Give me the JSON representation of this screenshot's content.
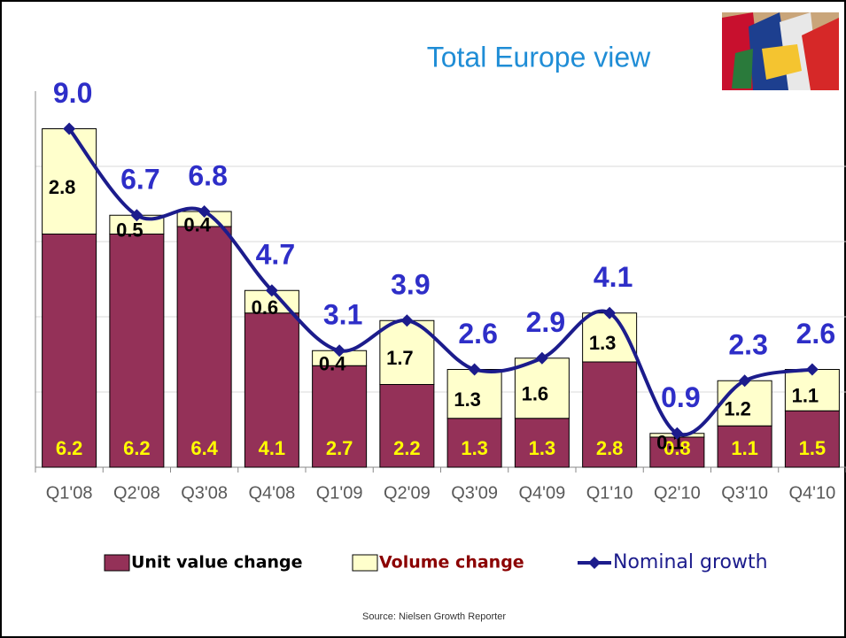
{
  "chart_data": {
    "type": "bar_line",
    "title": "Total Europe view",
    "source": "Source: Nielsen Growth Reporter",
    "categories": [
      "Q1'08",
      "Q2'08",
      "Q3'08",
      "Q4'08",
      "Q1'09",
      "Q2'09",
      "Q3'09",
      "Q4'09",
      "Q1'10",
      "Q2'10",
      "Q3'10",
      "Q4'10"
    ],
    "series": [
      {
        "name": "Unit value change",
        "color": "#943158",
        "type": "bar",
        "values": [
          6.2,
          6.2,
          6.4,
          4.1,
          2.7,
          2.2,
          1.3,
          1.3,
          2.8,
          0.8,
          1.1,
          1.5
        ]
      },
      {
        "name": "Volume change",
        "color": "#ffffcc",
        "type": "bar",
        "values": [
          2.8,
          0.5,
          0.4,
          0.6,
          0.4,
          1.7,
          1.3,
          1.6,
          1.3,
          0.1,
          1.2,
          1.1
        ]
      },
      {
        "name": "Nominal growth",
        "color": "#1c1c8c",
        "type": "line",
        "values": [
          9.0,
          6.7,
          6.8,
          4.7,
          3.1,
          3.9,
          2.6,
          2.9,
          4.1,
          0.9,
          2.3,
          2.6
        ],
        "value_labels": [
          "9.0",
          "6.7",
          "6.8",
          "4.7",
          "3.1",
          "3.9",
          "2.6",
          "2.9",
          "4.1",
          "0.9",
          "2.3",
          "2.6"
        ]
      }
    ],
    "ylim": [
      0,
      10
    ],
    "yticks": [
      0,
      2,
      4,
      6,
      8
    ],
    "grid": true
  }
}
